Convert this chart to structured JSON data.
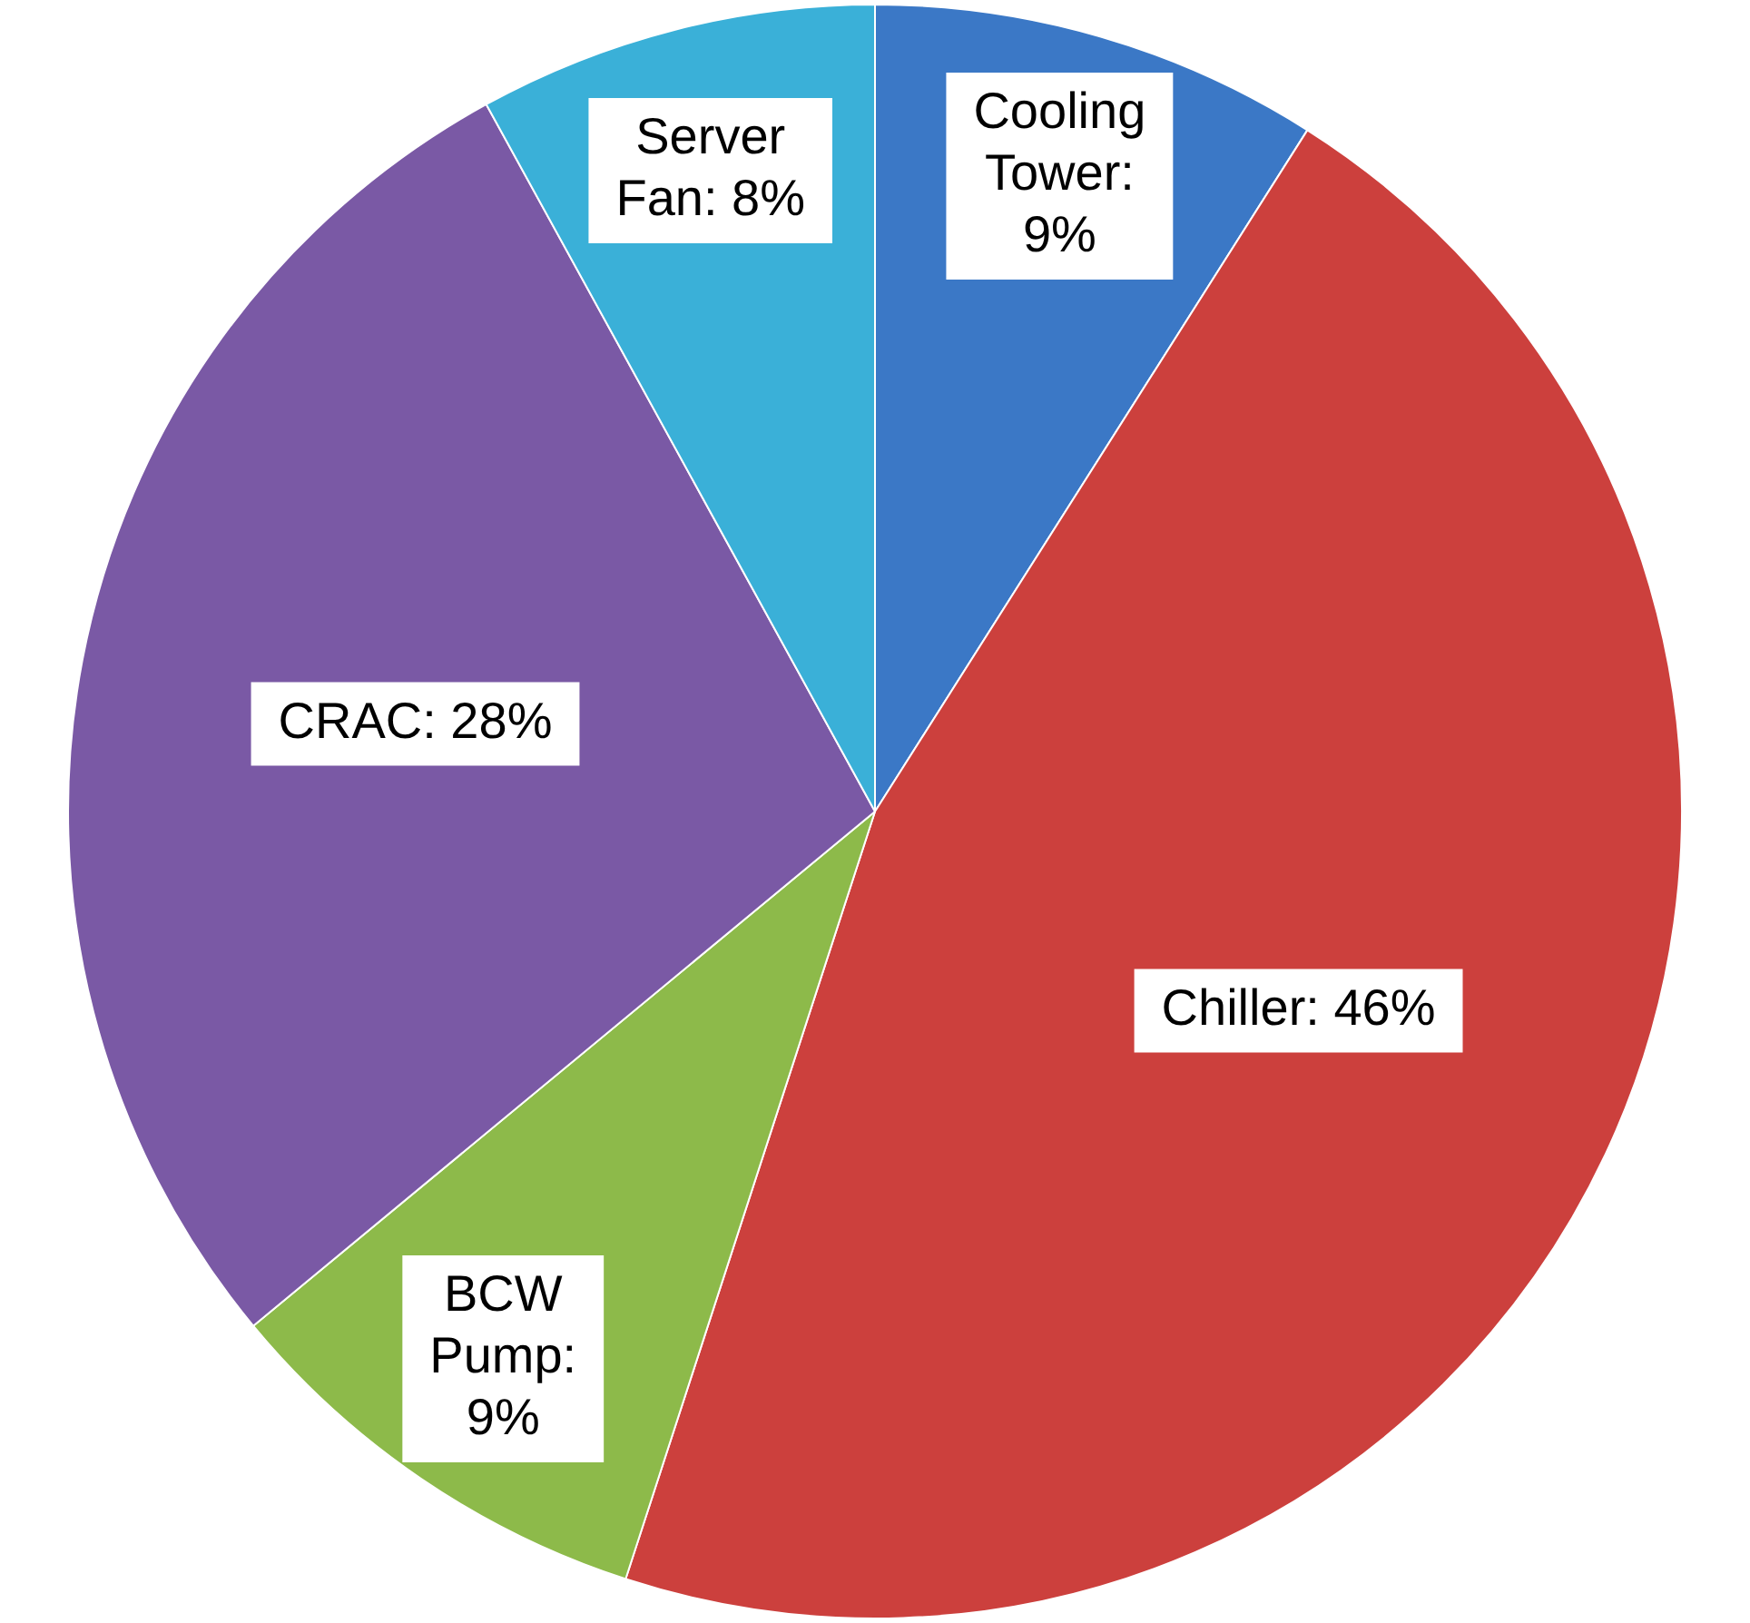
{
  "chart_data": {
    "type": "pie",
    "categories": [
      "Cooling Tower",
      "Chiller",
      "BCW Pump",
      "CRAC",
      "Server Fan"
    ],
    "values": [
      9,
      46,
      9,
      28,
      8
    ],
    "colors": [
      "#3b78c6",
      "#cc403d",
      "#8dba4a",
      "#7a59a5",
      "#3ab0d8"
    ],
    "value_labels": [
      ": 9%",
      ": 46%",
      ": 9%",
      ": 28%",
      ": 8%"
    ],
    "legend": false
  }
}
